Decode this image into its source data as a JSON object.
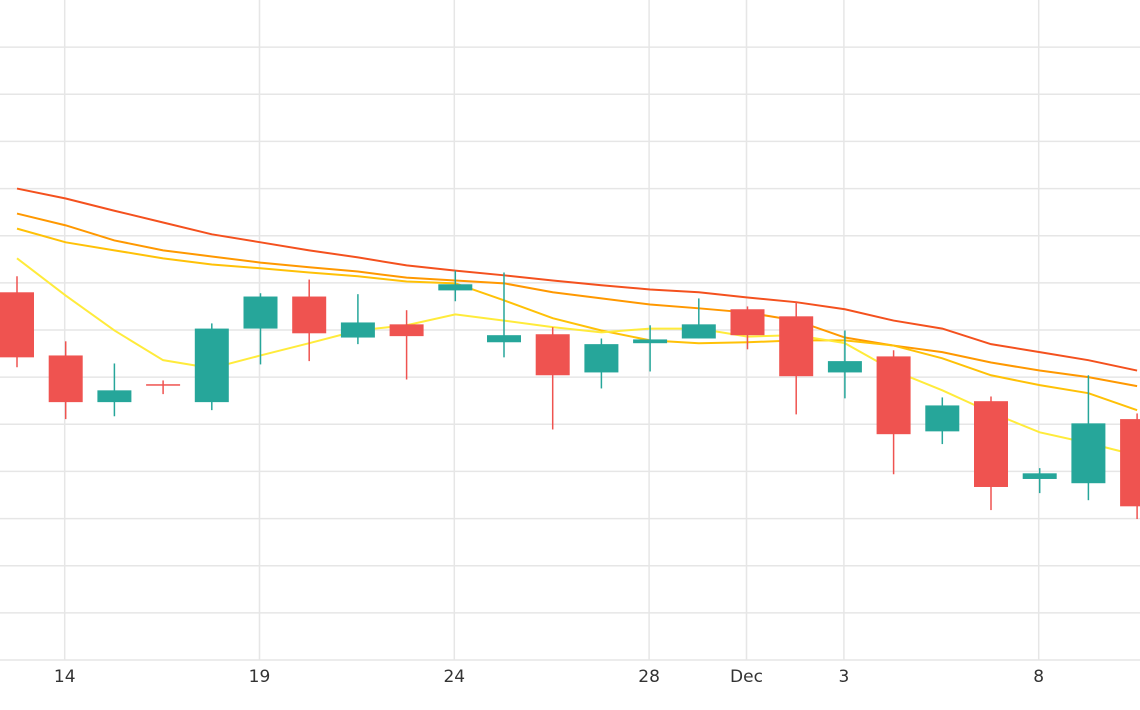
{
  "chart_data": {
    "type": "candlestick",
    "categories": [
      null,
      "14",
      null,
      null,
      null,
      "19",
      null,
      null,
      null,
      "24",
      null,
      null,
      null,
      "28",
      null,
      "Dec",
      null,
      "3",
      null,
      null,
      null,
      "8",
      null,
      null
    ],
    "open": [
      7.8,
      6.46,
      5.47,
      5.85,
      5.47,
      7.03,
      7.71,
      6.84,
      7.12,
      7.84,
      6.74,
      6.91,
      6.1,
      6.72,
      6.82,
      7.44,
      7.29,
      6.1,
      6.44,
      4.85,
      5.49,
      3.84,
      3.75,
      5.11
    ],
    "high": [
      8.14,
      6.76,
      6.29,
      5.93,
      7.14,
      7.78,
      8.07,
      7.76,
      7.42,
      8.26,
      8.22,
      7.06,
      6.82,
      7.1,
      7.67,
      7.5,
      7.59,
      6.99,
      6.57,
      5.57,
      5.59,
      4.07,
      6.04,
      5.23
    ],
    "low": [
      6.21,
      5.11,
      5.17,
      5.64,
      5.3,
      6.27,
      6.34,
      6.7,
      5.95,
      7.61,
      6.42,
      4.89,
      5.76,
      6.12,
      6.82,
      6.59,
      5.21,
      5.55,
      3.94,
      4.58,
      3.18,
      3.54,
      3.39,
      2.99
    ],
    "close": [
      6.42,
      5.47,
      5.72,
      5.83,
      7.03,
      7.71,
      6.93,
      7.16,
      6.87,
      7.97,
      6.89,
      6.04,
      6.7,
      6.8,
      7.12,
      6.89,
      6.02,
      6.34,
      4.79,
      5.4,
      3.67,
      3.96,
      5.02,
      3.26
    ],
    "up_color": "#26a69a",
    "down_color": "#ef5350",
    "series": [
      {
        "color": "#f4511e",
        "values": [
          10.0,
          9.79,
          9.53,
          9.28,
          9.03,
          8.86,
          8.69,
          8.54,
          8.37,
          8.26,
          8.16,
          8.05,
          7.95,
          7.86,
          7.8,
          7.69,
          7.59,
          7.44,
          7.2,
          7.03,
          6.7,
          6.53,
          6.36,
          6.14
        ]
      },
      {
        "color": "#ff9800",
        "values": [
          9.47,
          9.22,
          8.9,
          8.69,
          8.56,
          8.43,
          8.33,
          8.24,
          8.11,
          8.05,
          7.99,
          7.8,
          7.67,
          7.54,
          7.46,
          7.37,
          7.2,
          6.84,
          6.67,
          6.53,
          6.31,
          6.14,
          6.0,
          5.81
        ]
      },
      {
        "color": "#ffc107",
        "values": [
          9.15,
          8.86,
          8.69,
          8.52,
          8.39,
          8.31,
          8.22,
          8.14,
          8.03,
          7.99,
          7.63,
          7.25,
          6.99,
          6.78,
          6.72,
          6.74,
          6.78,
          6.78,
          6.67,
          6.4,
          6.04,
          5.83,
          5.66,
          5.3
        ]
      },
      {
        "color": "#ffeb3b",
        "values": [
          8.52,
          7.73,
          6.99,
          6.36,
          6.19,
          6.46,
          6.72,
          6.99,
          7.1,
          7.33,
          7.2,
          7.06,
          6.95,
          7.03,
          7.03,
          6.86,
          6.89,
          6.72,
          6.14,
          5.72,
          5.25,
          4.83,
          4.6,
          4.34
        ]
      }
    ],
    "ylim": [
      0,
      14
    ],
    "yticks": [
      0,
      1,
      2,
      3,
      4,
      5,
      6,
      7,
      8,
      9,
      10,
      11,
      12,
      13
    ],
    "grid": true
  }
}
